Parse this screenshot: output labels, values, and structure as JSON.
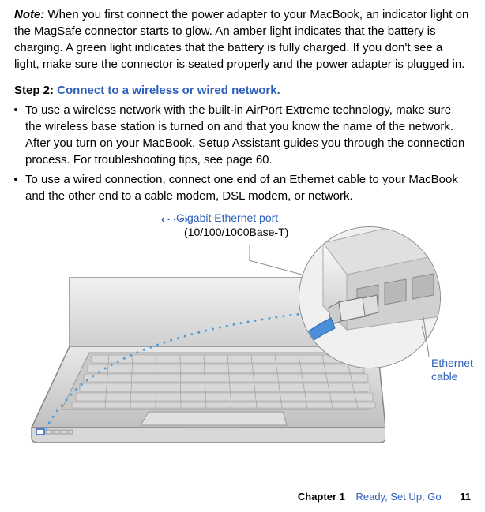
{
  "note": {
    "label": "Note:",
    "text": "When you first connect the power adapter to your MacBook, an indicator light on the MagSafe connector starts to glow. An amber light indicates that the battery is charging. A green light indicates that the battery is fully charged. If you don't see a light, make sure the connector is seated properly and the power adapter is plugged in."
  },
  "step": {
    "label": "Step 2:",
    "title": "Connect to a wireless or wired network."
  },
  "bullets": [
    "To use a wireless network with the built-in AirPort Extreme technology, make sure the wireless base station is turned on and that you know the name of the network. After you turn on your MacBook, Setup Assistant guides you through the connection process. For troubleshooting tips, see page 60.",
    "To use a wired connection, connect one end of an Ethernet cable to your MacBook and the other end to a cable modem, DSL modem, or network."
  ],
  "labels": {
    "port_icon": "‹···›",
    "port": "Gigabit Ethernet port",
    "port_sub": "(10/100/1000Base-T)",
    "cable": "Ethernet cable"
  },
  "footer": {
    "chapter": "Chapter 1",
    "title": "Ready, Set Up, Go",
    "page": "11"
  },
  "colors": {
    "accent": "#2d5fbb",
    "dot": "#4aa0d8",
    "metal_light": "#e8e8e8",
    "metal_dark": "#b0b0b0",
    "cable_blue": "#4a8fd8"
  }
}
